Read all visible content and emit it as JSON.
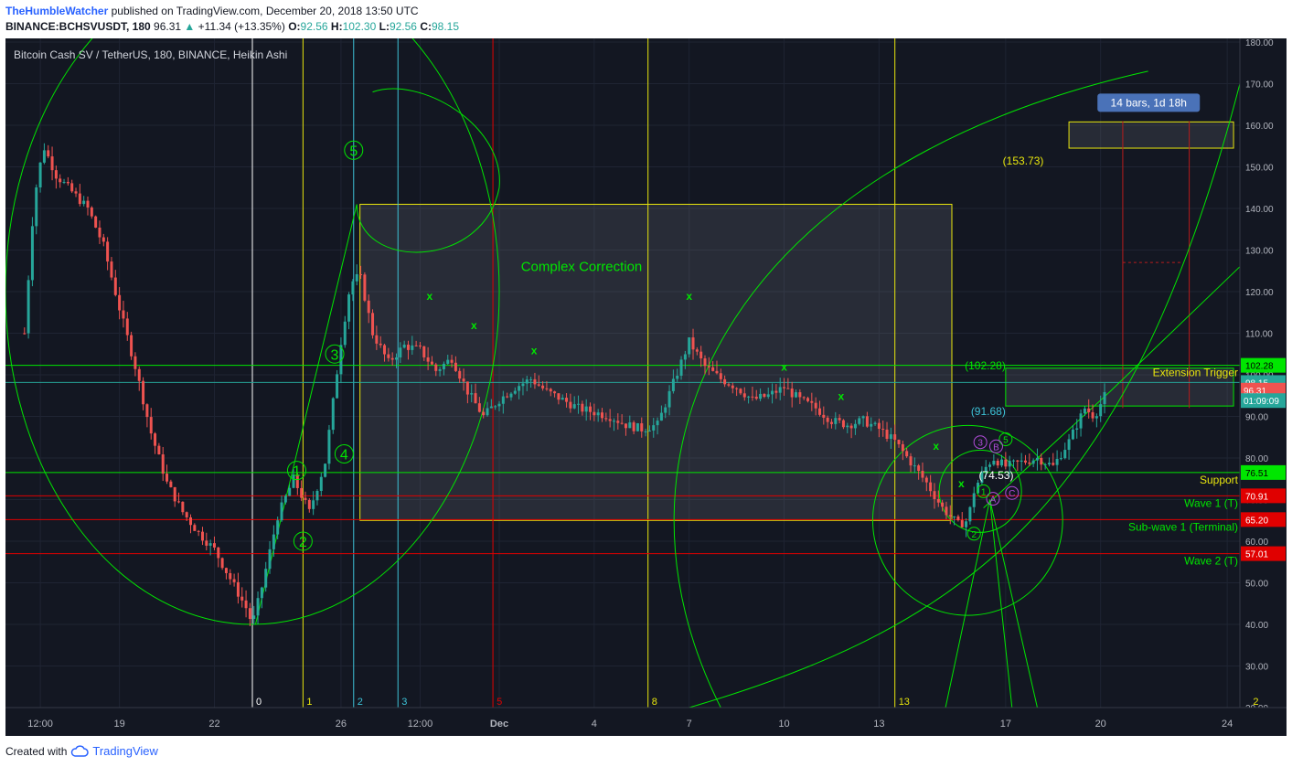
{
  "header": {
    "author": "TheHumbleWatcher",
    "published": "published on TradingView.com, December 20, 2018 13:50 UTC",
    "symbol": "BINANCE:BCHSVUSDT, 180",
    "last": "96.31",
    "change_arrow": "▲",
    "change": "+11.34 (+13.35%)",
    "o_label": "O:",
    "o": "92.56",
    "h_label": "H:",
    "h": "102.30",
    "l_label": "L:",
    "l": "92.56",
    "c_label": "C:",
    "c": "98.15"
  },
  "chart_title": "Bitcoin Cash SV / TetherUS, 180, BINANCE, Heikin Ashi",
  "footer": {
    "created": "Created with",
    "brand": "TradingView",
    "logo_icon": "tradingview-cloud-icon"
  },
  "colors": {
    "bg": "#131722",
    "up": "#26a69a",
    "down": "#ef5350",
    "green": "#00e600",
    "yellow": "#e8e60d",
    "cyan": "#3dc3d8",
    "red": "#e00000",
    "purple": "#b04cd8"
  },
  "chart_data": {
    "type": "candlestick",
    "style": "Heikin Ashi",
    "ylim": [
      20,
      180
    ],
    "yticks": [
      20,
      30,
      40,
      50,
      60,
      70,
      80,
      90,
      100,
      110,
      120,
      130,
      140,
      150,
      160,
      170,
      180
    ],
    "ytick_labels": [
      "20.00",
      "30.00",
      "40.00",
      "50.00",
      "60.00",
      "70.00",
      "80.00",
      "90.00",
      "100.00",
      "110.00",
      "120.00",
      "130.00",
      "140.00",
      "150.00",
      "160.00",
      "170.00",
      "180.00"
    ],
    "xlim_days": [
      -0.6,
      28.4
    ],
    "xticks": [
      {
        "d": 0.5,
        "label": "12:00"
      },
      {
        "d": 3,
        "label": "19"
      },
      {
        "d": 6,
        "label": "22"
      },
      {
        "d": 10,
        "label": "26"
      },
      {
        "d": 12.5,
        "label": "12:00"
      },
      {
        "d": 15,
        "label": "Dec"
      },
      {
        "d": 18,
        "label": "4"
      },
      {
        "d": 21,
        "label": "7"
      },
      {
        "d": 24,
        "label": "10"
      },
      {
        "d": 27,
        "label": "13"
      },
      {
        "d": 31,
        "label": "17"
      },
      {
        "d": 34,
        "label": "20"
      },
      {
        "d": 38,
        "label": "24"
      }
    ],
    "price_path": [
      [
        0.0,
        110
      ],
      [
        0.3,
        142
      ],
      [
        0.6,
        155
      ],
      [
        1.0,
        148
      ],
      [
        1.5,
        144
      ],
      [
        2.0,
        140
      ],
      [
        2.5,
        131
      ],
      [
        3.0,
        116
      ],
      [
        3.5,
        102
      ],
      [
        4.0,
        86
      ],
      [
        4.5,
        74
      ],
      [
        5.0,
        67
      ],
      [
        5.5,
        62
      ],
      [
        6.0,
        58
      ],
      [
        6.5,
        51
      ],
      [
        7.0,
        44
      ],
      [
        7.2,
        40
      ],
      [
        7.5,
        49
      ],
      [
        8.0,
        66
      ],
      [
        8.5,
        75
      ],
      [
        9.0,
        67
      ],
      [
        9.5,
        79
      ],
      [
        10.0,
        108
      ],
      [
        10.3,
        122
      ],
      [
        10.6,
        124
      ],
      [
        11.0,
        110
      ],
      [
        11.5,
        103
      ],
      [
        12.0,
        107
      ],
      [
        12.5,
        106
      ],
      [
        13.0,
        101
      ],
      [
        13.5,
        104
      ],
      [
        14.0,
        96
      ],
      [
        14.5,
        90
      ],
      [
        15.0,
        94
      ],
      [
        15.5,
        97
      ],
      [
        16.0,
        99
      ],
      [
        16.5,
        96
      ],
      [
        17.0,
        94
      ],
      [
        17.5,
        92
      ],
      [
        18.0,
        91
      ],
      [
        18.5,
        90
      ],
      [
        19.0,
        88
      ],
      [
        19.5,
        87
      ],
      [
        20.0,
        88
      ],
      [
        20.5,
        98
      ],
      [
        21.0,
        108
      ],
      [
        21.5,
        102
      ],
      [
        22.0,
        99
      ],
      [
        22.5,
        97
      ],
      [
        23.0,
        94
      ],
      [
        23.5,
        95
      ],
      [
        24.0,
        97
      ],
      [
        24.5,
        94
      ],
      [
        25.0,
        92
      ],
      [
        25.5,
        89
      ],
      [
        26.0,
        88
      ],
      [
        26.5,
        89
      ],
      [
        27.0,
        87
      ],
      [
        27.5,
        84
      ],
      [
        28.0,
        79
      ],
      [
        28.5,
        74
      ],
      [
        29.0,
        68
      ],
      [
        29.5,
        64
      ],
      [
        29.8,
        65
      ],
      [
        30.0,
        72
      ],
      [
        30.3,
        77
      ],
      [
        30.6,
        80
      ],
      [
        31.0,
        78
      ],
      [
        31.5,
        79
      ],
      [
        32.0,
        80
      ],
      [
        32.5,
        78
      ],
      [
        33.0,
        84
      ],
      [
        33.5,
        92
      ],
      [
        33.8,
        90
      ],
      [
        34.2,
        96
      ]
    ],
    "xlim": [
      -0.6,
      38.4
    ],
    "horizontal_levels": [
      {
        "value": 102.28,
        "label": "102.28",
        "color": "#00e600",
        "text": "Extension Trigger"
      },
      {
        "value": 98.15,
        "label": "98.15",
        "color": "#26a69a",
        "text": ""
      },
      {
        "value": 76.51,
        "label": "76.51",
        "color": "#00e600",
        "text": "Support"
      },
      {
        "value": 70.91,
        "label": "70.91",
        "color": "#e00000",
        "text": "Wave 1 (T)"
      },
      {
        "value": 65.2,
        "label": "65.20",
        "color": "#e00000",
        "text": "Sub-wave 1 (Terminal)"
      },
      {
        "value": 57.01,
        "label": "57.01",
        "color": "#e00000",
        "text": "Wave 2 (T)"
      }
    ],
    "price_labels": [
      {
        "value": 96.31,
        "label": "96.31",
        "color": "#ef5350"
      },
      {
        "value": 93.8,
        "label": "01:09:09",
        "color": "#26a69a"
      }
    ],
    "vertical_lines": [
      {
        "d": 7.2,
        "label": "0",
        "color": "#ffffff"
      },
      {
        "d": 8.8,
        "label": "1",
        "color": "#e8e60d"
      },
      {
        "d": 10.4,
        "label": "2",
        "color": "#3dc3d8"
      },
      {
        "d": 11.8,
        "label": "3",
        "color": "#3dc3d8"
      },
      {
        "d": 14.8,
        "label": "5",
        "color": "#e00000"
      },
      {
        "d": 19.7,
        "label": "8",
        "color": "#e8e60d"
      },
      {
        "d": 27.5,
        "label": "13",
        "color": "#e8e60d"
      },
      {
        "d": 38.7,
        "label": "2",
        "color": "#e8e60d"
      }
    ],
    "annotations": {
      "correction_title": "Complex Correction",
      "pattern_length": "14 bars, 1d 18h",
      "level_153": "(153.73)",
      "level_102": "(102.28)",
      "level_91": "(91.68)",
      "level_74": "(74.53)",
      "wave_1": "1",
      "wave_2": "2",
      "wave_3": "3",
      "wave_4": "4",
      "wave_5": "5",
      "sub_2": "2",
      "sub_3": "3",
      "sub_5": "5",
      "sub_a": "A",
      "sub_b": "B",
      "sub_c": "C",
      "sub_1": "1",
      "x_mark": "x"
    }
  }
}
